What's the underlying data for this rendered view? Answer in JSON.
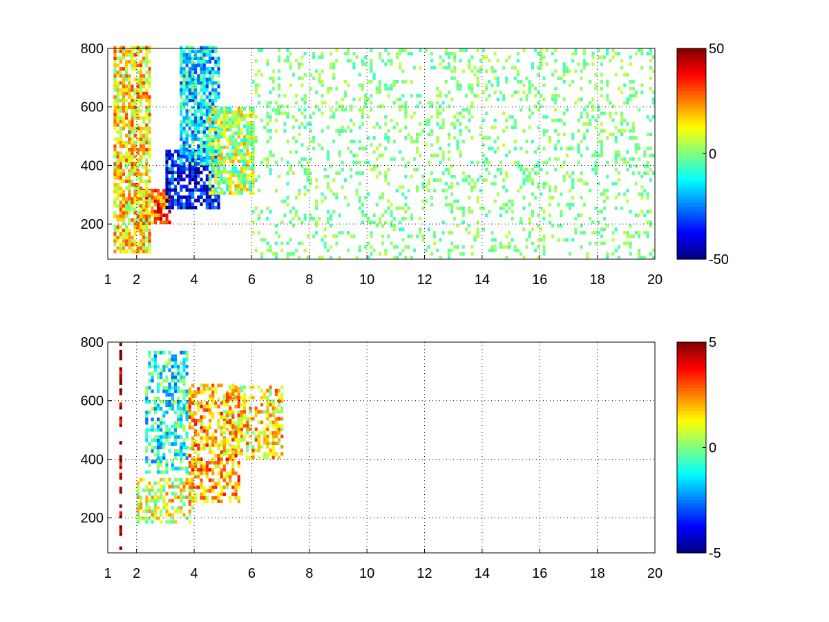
{
  "chart_data": [
    {
      "type": "heatmap",
      "panel": "top",
      "title": "",
      "xlabel": "",
      "ylabel": "",
      "xlim": [
        1,
        20
      ],
      "ylim": [
        80,
        800
      ],
      "xticks": [
        1,
        2,
        4,
        6,
        8,
        10,
        12,
        14,
        16,
        18,
        20
      ],
      "yticks": [
        200,
        400,
        600,
        800
      ],
      "grid": true,
      "colormap": "jet",
      "clim": [
        -50,
        50
      ],
      "colorbar_ticks": [
        50,
        0,
        -50
      ],
      "description_regions": [
        {
          "x_range": [
            2.2,
            3.2
          ],
          "y_range": [
            200,
            320
          ],
          "value": 30
        },
        {
          "x_range": [
            3.0,
            4.8
          ],
          "y_range": [
            250,
            450
          ],
          "value": -40
        },
        {
          "x_range": [
            3.5,
            4.8
          ],
          "y_range": [
            400,
            800
          ],
          "value": -15
        },
        {
          "x_range": [
            1.2,
            2.5
          ],
          "y_range": [
            100,
            800
          ],
          "value": 15
        },
        {
          "x_range": [
            4.5,
            6.0
          ],
          "y_range": [
            300,
            600
          ],
          "value": 5
        },
        {
          "x_range": [
            6.0,
            20.0
          ],
          "y_range": [
            80,
            800
          ],
          "value": 0
        }
      ]
    },
    {
      "type": "heatmap",
      "panel": "bottom",
      "title": "",
      "xlabel": "",
      "ylabel": "",
      "xlim": [
        1,
        20
      ],
      "ylim": [
        80,
        800
      ],
      "xticks": [
        1,
        2,
        4,
        6,
        8,
        10,
        12,
        14,
        16,
        18,
        20
      ],
      "yticks": [
        200,
        400,
        600,
        800
      ],
      "grid": true,
      "colormap": "jet",
      "clim": [
        -5,
        5
      ],
      "colorbar_ticks": [
        5,
        0,
        -5
      ],
      "description_regions": [
        {
          "x_range": [
            1.4,
            1.45
          ],
          "y_range": [
            90,
            790
          ],
          "value": 5
        },
        {
          "x_range": [
            2.3,
            3.8
          ],
          "y_range": [
            350,
            760
          ],
          "value": -1
        },
        {
          "x_range": [
            2.0,
            4.0
          ],
          "y_range": [
            180,
            330
          ],
          "value": 1
        },
        {
          "x_range": [
            3.8,
            5.5
          ],
          "y_range": [
            250,
            650
          ],
          "value": 2
        },
        {
          "x_range": [
            5.0,
            7.0
          ],
          "y_range": [
            400,
            650
          ],
          "value": 1.5
        }
      ]
    }
  ]
}
